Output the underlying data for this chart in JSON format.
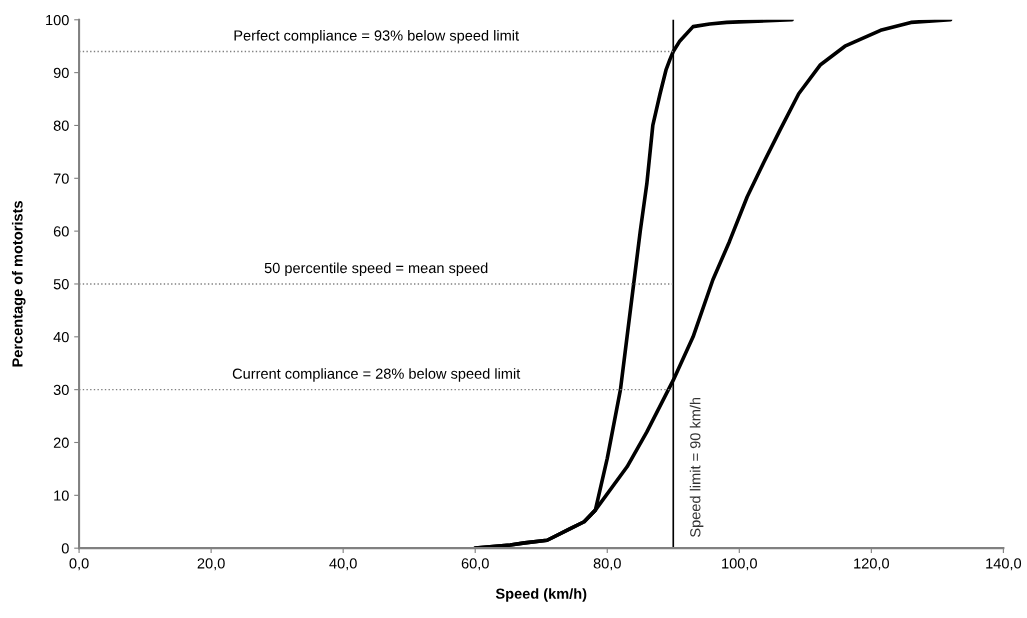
{
  "chart_data": {
    "type": "line",
    "xlabel": "Speed (km/h)",
    "ylabel": "Percentage of motorists",
    "series": [
      {
        "color": "#000000",
        "x": [
          60,
          65.3,
          67.5,
          70.9,
          74.4,
          76.5,
          78.2,
          80,
          82,
          83,
          84,
          85,
          86,
          86.9,
          88,
          88.9,
          89.5,
          90,
          91,
          93,
          95.5,
          98.1,
          108
        ],
        "values": [
          0,
          0.6,
          1,
          1.5,
          3.7,
          5,
          7.2,
          17,
          30,
          40,
          50,
          60,
          69,
          80,
          86,
          90.5,
          92.5,
          94,
          96,
          98.7,
          99.2,
          99.5,
          100
        ]
      },
      {
        "color": "#000000",
        "x": [
          60,
          65.3,
          67.5,
          70.9,
          74.4,
          76.5,
          78.2,
          83,
          86,
          90,
          93,
          96,
          98.5,
          101.2,
          103.7,
          106.2,
          109,
          112.3,
          116,
          121.4,
          126,
          132
        ],
        "values": [
          0,
          0.6,
          1,
          1.5,
          3.7,
          5,
          7.2,
          15.4,
          22,
          31.8,
          40,
          50.8,
          58,
          66.5,
          73,
          79.2,
          86,
          91.5,
          95,
          98,
          99.5,
          100
        ]
      }
    ],
    "xlim": [
      0,
      140
    ],
    "xticks": [
      {
        "value": 0,
        "label": "0,0"
      },
      {
        "value": 20,
        "label": "20,0"
      },
      {
        "value": 40,
        "label": "40,0"
      },
      {
        "value": 60,
        "label": "60,0"
      },
      {
        "value": 80,
        "label": "80,0"
      },
      {
        "value": 100,
        "label": "100,0"
      },
      {
        "value": 120,
        "label": "120,0"
      },
      {
        "value": 140,
        "label": "140,0"
      }
    ],
    "ylim": [
      0,
      100
    ],
    "yticks": [
      0,
      10,
      20,
      30,
      40,
      50,
      60,
      70,
      80,
      90,
      100
    ],
    "ref_lines": [
      {
        "axis": "x",
        "value": 90,
        "label": "Speed limit = 90 km/h",
        "color": "#000000",
        "line_style": "solid"
      },
      {
        "axis": "y",
        "value": 94,
        "color": "#808080",
        "line_style": "dotted"
      },
      {
        "axis": "y",
        "value": 50,
        "color": "#808080",
        "line_style": "dotted"
      },
      {
        "axis": "y",
        "value": 30,
        "color": "#808080",
        "line_style": "dotted"
      }
    ],
    "annotations": [
      "Perfect compliance = 93% below speed limit",
      "50 percentile speed = mean speed",
      "Current compliance = 28% below speed limit"
    ],
    "grid": false,
    "legend": false,
    "marker": "none",
    "line_style": "solid"
  }
}
